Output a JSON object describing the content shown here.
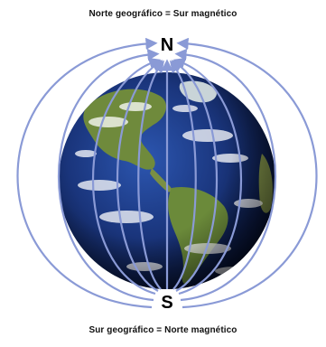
{
  "captions": {
    "top": "Norte geográfico = Sur magnético",
    "bottom": "Sur geográfico = Norte magnético"
  },
  "poles": {
    "north": "N",
    "south": "S"
  },
  "colors": {
    "field_line": "#8a9ad6",
    "ocean_dark": "#0b1a4a",
    "ocean": "#1f3f8f",
    "land": "#6f8a3c",
    "cloud": "#ffffff"
  },
  "icons": {
    "arrow": "field-line-arrow-icon"
  }
}
